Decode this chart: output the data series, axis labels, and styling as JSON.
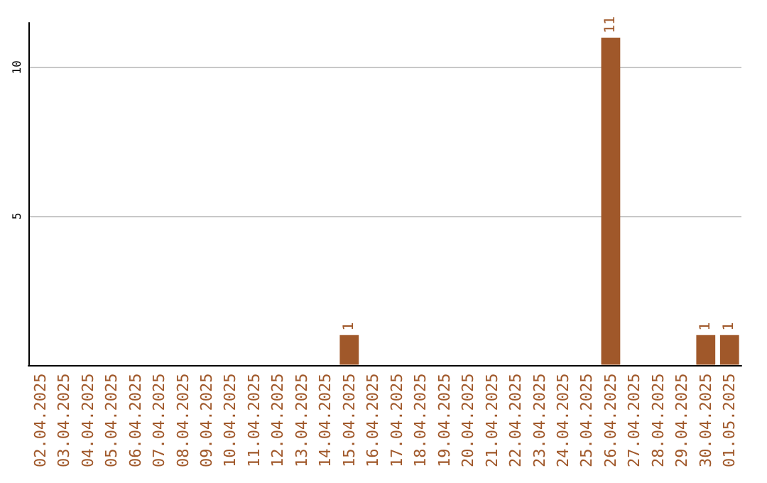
{
  "chart_data": {
    "type": "bar",
    "categories": [
      "02.04.2025",
      "03.04.2025",
      "04.04.2025",
      "05.04.2025",
      "06.04.2025",
      "07.04.2025",
      "08.04.2025",
      "09.04.2025",
      "10.04.2025",
      "11.04.2025",
      "12.04.2025",
      "13.04.2025",
      "14.04.2025",
      "15.04.2025",
      "16.04.2025",
      "17.04.2025",
      "18.04.2025",
      "19.04.2025",
      "20.04.2025",
      "21.04.2025",
      "22.04.2025",
      "23.04.2025",
      "24.04.2025",
      "25.04.2025",
      "26.04.2025",
      "27.04.2025",
      "28.04.2025",
      "29.04.2025",
      "30.04.2025",
      "01.05.2025"
    ],
    "values": [
      0,
      0,
      0,
      0,
      0,
      0,
      0,
      0,
      0,
      0,
      0,
      0,
      0,
      1,
      0,
      0,
      0,
      0,
      0,
      0,
      0,
      0,
      0,
      0,
      11,
      0,
      0,
      0,
      1,
      1
    ],
    "value_labels": [
      null,
      null,
      null,
      null,
      null,
      null,
      null,
      null,
      null,
      null,
      null,
      null,
      null,
      "1",
      null,
      null,
      null,
      null,
      null,
      null,
      null,
      null,
      null,
      null,
      "11",
      null,
      null,
      null,
      "1",
      "1"
    ],
    "color": "#a0582a",
    "ylim": [
      0,
      11.5
    ],
    "yticks": [
      5,
      10
    ],
    "grid": "y"
  }
}
